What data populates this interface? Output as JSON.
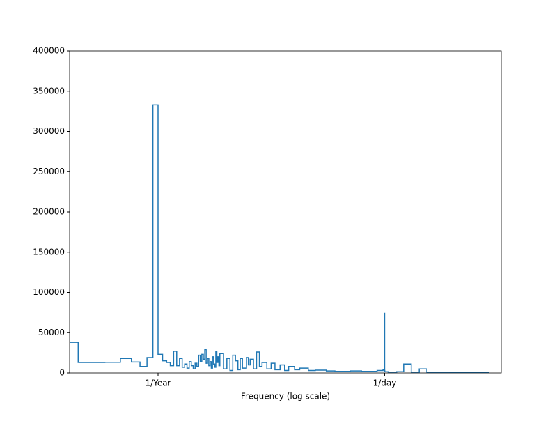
{
  "chart_data": {
    "type": "step",
    "xlabel": "Frequency (log scale)",
    "xscale": "log",
    "xlim": [
      0.1,
      7620
    ],
    "ylim": [
      0,
      400000
    ],
    "xticks": [
      {
        "value": 1,
        "label": "1/Year"
      },
      {
        "value": 365.2524,
        "label": "1/day"
      }
    ],
    "yticks": [
      0,
      50000,
      100000,
      150000,
      200000,
      250000,
      300000,
      350000,
      400000
    ],
    "x": [
      0.125,
      0.25,
      0.375,
      0.5,
      0.625,
      0.75,
      0.875,
      1.0,
      1.125,
      1.25,
      1.375,
      1.5,
      1.625,
      1.75,
      1.875,
      2.0,
      2.125,
      2.25,
      2.375,
      2.5,
      2.625,
      2.75,
      2.875,
      3.0,
      3.125,
      3.25,
      3.375,
      3.5,
      3.625,
      3.75,
      3.875,
      4.0,
      4.125,
      4.25,
      4.375,
      4.5,
      4.625,
      4.75,
      4.875,
      5.0,
      5.5,
      6,
      6.5,
      7,
      7.5,
      8,
      8.5,
      9,
      10,
      10.5,
      11,
      12,
      13,
      14,
      15,
      17,
      19,
      21,
      24,
      27,
      30,
      35,
      40,
      50,
      60,
      80,
      100,
      150,
      200,
      300,
      350,
      364,
      365.25,
      366.5,
      400,
      500,
      600,
      730.5,
      731.8,
      900,
      1095.75,
      1097,
      2000,
      4000,
      5500
    ],
    "series": [
      {
        "color": "#1f77b4",
        "values": [
          38000,
          13000,
          13200,
          18000,
          13500,
          8000,
          19000,
          333000,
          23000,
          15000,
          13000,
          9000,
          27000,
          9000,
          18000,
          7000,
          11000,
          6000,
          14000,
          9000,
          5000,
          12000,
          8000,
          22000,
          14000,
          23000,
          17000,
          29000,
          12000,
          18000,
          9000,
          14000,
          6000,
          20000,
          11000,
          7000,
          27000,
          13000,
          20000,
          9000,
          24000,
          5000,
          18000,
          3000,
          22000,
          15000,
          4000,
          18000,
          6000,
          19000,
          10000,
          17000,
          5000,
          26000,
          8000,
          13000,
          5000,
          12000,
          4000,
          10000,
          3000,
          8000,
          4000,
          6000,
          3000,
          3500,
          2500,
          2000,
          2500,
          2000,
          3000,
          4000,
          74000,
          3000,
          1500,
          1000,
          1500,
          11000,
          1000,
          1000,
          5000,
          500,
          800,
          500,
          300
        ]
      }
    ]
  }
}
